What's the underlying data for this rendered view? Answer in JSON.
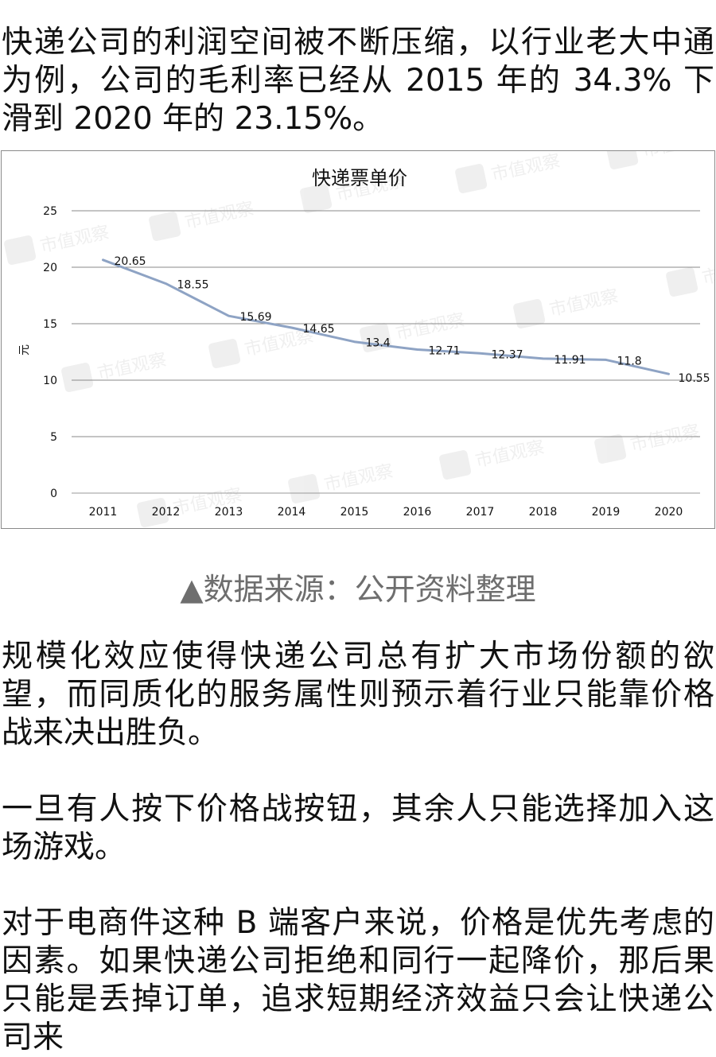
{
  "paragraphs": {
    "p1": "快递公司的利润空间被不断压缩，以行业老大中通为例，公司的毛利率已经从 2015 年的 34.3% 下滑到 2020 年的 23.15%。",
    "p2": "规模化效应使得快递公司总有扩大市场份额的欲望，而同质化的服务属性则预示着行业只能靠价格战来决出胜负。",
    "p3": "一旦有人按下价格战按钮，其余人只能选择加入这场游戏。",
    "p4": "对于电商件这种 B 端客户来说，价格是优先考虑的因素。如果快递公司拒绝和同行一起降价，那后果只能是丢掉订单，追求短期经济效益只会让快递公司来"
  },
  "caption": "▲数据来源：公开资料整理",
  "watermark_text": "市值观察",
  "chart_data": {
    "type": "line",
    "title": "快递票单价",
    "ylabel": "元",
    "xlabel": "",
    "categories": [
      "2011",
      "2012",
      "2013",
      "2014",
      "2015",
      "2016",
      "2017",
      "2018",
      "2019",
      "2020"
    ],
    "series": [
      {
        "values": [
          20.65,
          18.55,
          15.69,
          14.65,
          13.4,
          12.71,
          12.37,
          11.91,
          11.8,
          10.55
        ]
      }
    ],
    "data_labels": [
      "20.65",
      "18.55",
      "15.69",
      "14.65",
      "13.4",
      "12.71",
      "12.37",
      "11.91",
      "11.8",
      "10.55"
    ],
    "ylim": [
      0,
      25
    ],
    "yticks": [
      0,
      5,
      10,
      15,
      20,
      25
    ],
    "grid": true,
    "line_color": "#8ea3c4"
  }
}
